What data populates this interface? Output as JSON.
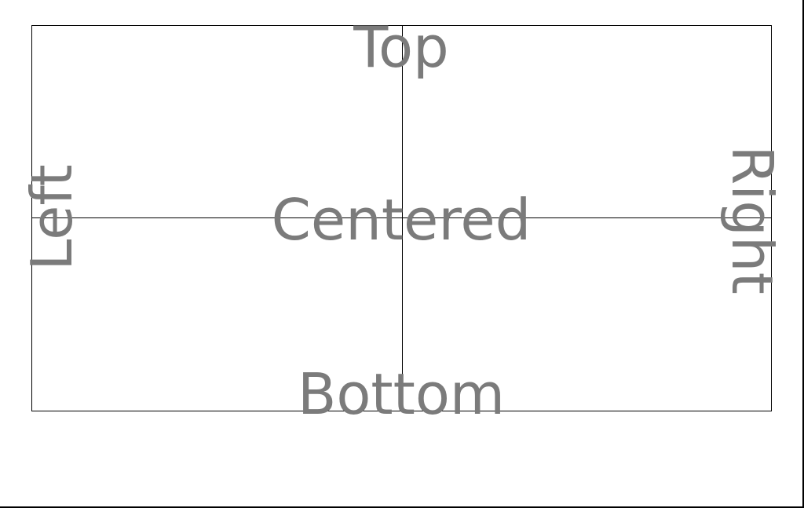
{
  "labels": {
    "top": "Top",
    "centered": "Centered",
    "bottom": "Bottom",
    "left": "Left",
    "right": "Right"
  },
  "colors": {
    "background": "#ffffff",
    "lines": "#000000",
    "text": "#7b7b7b"
  }
}
